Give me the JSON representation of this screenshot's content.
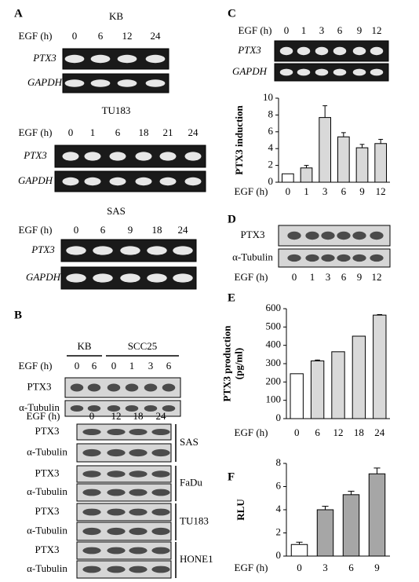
{
  "panel_labels": [
    "A",
    "B",
    "C",
    "D",
    "E",
    "F"
  ],
  "blots": [
    {
      "title": "KB",
      "lane_header": "EGF (h)",
      "lanes": [
        "0",
        "6",
        "12",
        "24"
      ],
      "rows": [
        "PTX3",
        "GAPDH"
      ]
    },
    {
      "title": "TU183",
      "lane_header": "EGF (h)",
      "lanes": [
        "0",
        "1",
        "6",
        "18",
        "21",
        "24"
      ],
      "rows": [
        "PTX3",
        "GAPDH"
      ]
    },
    {
      "title": "SAS",
      "lane_header": "EGF (h)",
      "lanes": [
        "0",
        "6",
        "9",
        "18",
        "24"
      ],
      "rows": [
        "PTX3",
        "GAPDH"
      ]
    },
    {
      "groups": [
        "KB",
        "SCC25"
      ],
      "lane_header": "EGF (h)",
      "lanes": [
        "0",
        "6",
        "0",
        "1",
        "3",
        "6"
      ],
      "rows": [
        "PTX3",
        "α-Tubulin"
      ]
    },
    {
      "lane_header": "EGF (h)",
      "lanes": [
        "0",
        "12",
        "18",
        "24"
      ],
      "cell_lines": [
        {
          "name": "SAS",
          "rows": [
            "PTX3",
            "α-Tubulin"
          ]
        },
        {
          "name": "FaDu",
          "rows": [
            "PTX3",
            "α-Tubulin"
          ]
        },
        {
          "name": "TU183",
          "rows": [
            "PTX3",
            "α-Tubulin"
          ]
        },
        {
          "name": "HONE1",
          "rows": [
            "PTX3",
            "α-Tubulin"
          ]
        }
      ]
    },
    {
      "lane_header": "EGF (h)",
      "lanes": [
        "0",
        "1",
        "3",
        "6",
        "9",
        "12"
      ],
      "rows": [
        "PTX3",
        "GAPDH"
      ]
    },
    {
      "lane_header": "EGF (h)",
      "lanes": [
        "0",
        "1",
        "3",
        "6",
        "9",
        "12"
      ],
      "rows": [
        "PTX3",
        "α-Tubulin"
      ]
    }
  ],
  "chart_data": [
    {
      "type": "bar",
      "x_label": "EGF (h)",
      "y_label": [
        "PTX3 induction"
      ],
      "categories": [
        "0",
        "1",
        "3",
        "6",
        "9",
        "12"
      ],
      "values": [
        1.0,
        1.7,
        7.7,
        5.4,
        4.1,
        4.6
      ],
      "errors": [
        null,
        0.3,
        1.4,
        0.5,
        0.4,
        0.5
      ],
      "colors": [
        "#ffffff",
        "#d9d9d9",
        "#d9d9d9",
        "#d9d9d9",
        "#d9d9d9",
        "#d9d9d9"
      ],
      "ylim": [
        0,
        10
      ],
      "yticks": [
        0,
        2,
        4,
        6,
        8,
        10
      ]
    },
    {
      "type": "bar",
      "x_label": "EGF (h)",
      "y_label": [
        "PTX3 production",
        "(pg/ml)"
      ],
      "categories": [
        "0",
        "6",
        "12",
        "18",
        "24"
      ],
      "values": [
        245,
        315,
        365,
        450,
        565
      ],
      "errors": [
        null,
        5,
        null,
        null,
        3
      ],
      "colors": [
        "#ffffff",
        "#d9d9d9",
        "#d9d9d9",
        "#d9d9d9",
        "#d9d9d9"
      ],
      "ylim": [
        0,
        600
      ],
      "yticks": [
        0,
        100,
        200,
        300,
        400,
        500,
        600
      ]
    },
    {
      "type": "bar",
      "x_label": "EGF (h)",
      "y_label": [
        "RLU"
      ],
      "categories": [
        "0",
        "3",
        "6",
        "9"
      ],
      "values": [
        1.0,
        4.0,
        5.3,
        7.1
      ],
      "errors": [
        0.2,
        0.3,
        0.3,
        0.5
      ],
      "colors": [
        "#ffffff",
        "#a6a6a6",
        "#a6a6a6",
        "#a6a6a6"
      ],
      "ylim": [
        0,
        8
      ],
      "yticks": [
        0,
        2,
        4,
        6,
        8
      ]
    }
  ]
}
